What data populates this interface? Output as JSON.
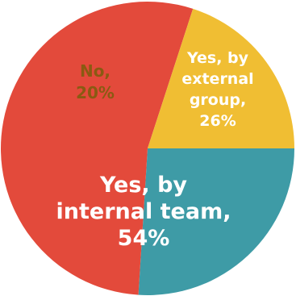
{
  "chart_data": {
    "type": "pie",
    "slices": [
      {
        "label": "Yes, by external group",
        "value": 26,
        "color": "#3e9ba6",
        "text_lines": [
          "Yes, by",
          "external",
          "group,",
          "26%"
        ]
      },
      {
        "label": "Yes, by internal team",
        "value": 54,
        "color": "#e34a3b",
        "text_lines": [
          "Yes, by",
          "internal team,",
          "54%"
        ]
      },
      {
        "label": "No",
        "value": 20,
        "color": "#f0be33",
        "text_lines": [
          "No,",
          "20%"
        ]
      }
    ],
    "title": "",
    "legend": "none"
  }
}
